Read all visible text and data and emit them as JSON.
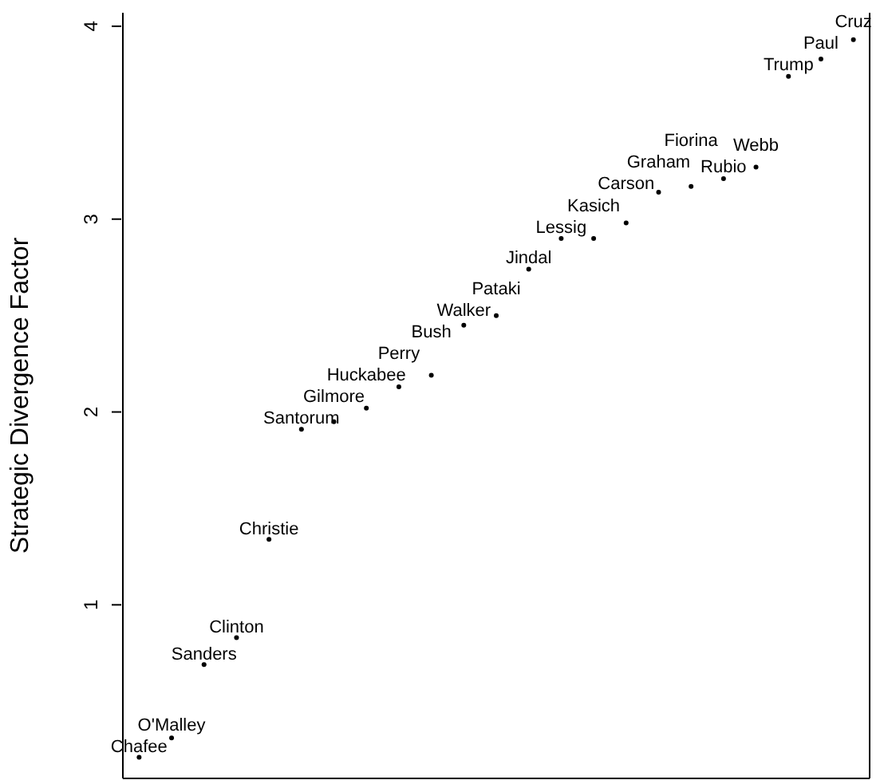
{
  "chart_data": {
    "type": "scatter",
    "ylabel": "Strategic Divergence Factor",
    "categories": [
      null,
      null,
      null,
      null,
      null,
      null,
      null,
      null,
      null,
      null,
      null,
      null,
      null,
      null,
      null,
      null,
      null,
      null,
      null,
      null,
      null,
      null,
      null
    ],
    "values": [
      0.21,
      0.31,
      0.69,
      0.83,
      1.34,
      1.91,
      1.95,
      2.02,
      2.13,
      2.19,
      2.45,
      2.5,
      2.74,
      2.9,
      2.9,
      2.98,
      3.14,
      3.17,
      3.21,
      3.27,
      3.74,
      3.83,
      3.93
    ],
    "annotations": [
      {
        "text": "Chafee",
        "y": 0.21
      },
      {
        "text": "O'Malley",
        "y": 0.31
      },
      {
        "text": "Sanders",
        "y": 0.69
      },
      {
        "text": "Clinton",
        "y": 0.83
      },
      {
        "text": "Christie",
        "y": 1.34
      },
      {
        "text": "Santorum",
        "y": 1.91
      },
      {
        "text": "Gilmore",
        "y": 1.95
      },
      {
        "text": "Huckabee",
        "y": 2.02
      },
      {
        "text": "Perry",
        "y": 2.13
      },
      {
        "text": "Bush",
        "y": 2.19
      },
      {
        "text": "Walker",
        "y": 2.45
      },
      {
        "text": "Pataki",
        "y": 2.5
      },
      {
        "text": "Jindal",
        "y": 2.74
      },
      {
        "text": "Lessig",
        "y": 2.9
      },
      {
        "text": "Kasich",
        "y": 2.9
      },
      {
        "text": "Carson",
        "y": 2.98
      },
      {
        "text": "Graham",
        "y": 3.14
      },
      {
        "text": "Fiorina",
        "y": 3.17
      },
      {
        "text": "Rubio",
        "y": 3.21
      },
      {
        "text": "Webb",
        "y": 3.27
      },
      {
        "text": "Trump",
        "y": 3.74
      },
      {
        "text": "Paul",
        "y": 3.83
      },
      {
        "text": "Cruz",
        "y": 3.93
      }
    ],
    "color": "#000000",
    "marker": "circle",
    "ylim": [
      0.1,
      4.07
    ],
    "yticks": [
      1,
      2,
      3,
      4
    ],
    "tick_labels": "y",
    "grid": false,
    "legend": false
  }
}
